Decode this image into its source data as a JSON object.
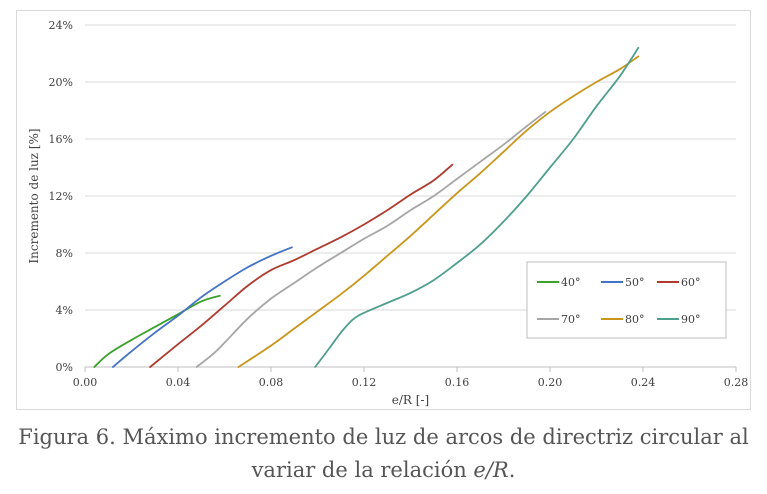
{
  "chart_data": {
    "type": "line",
    "xlabel": "e/R [-]",
    "ylabel": "Incremento de luz [%]",
    "xlim": [
      0,
      0.28
    ],
    "ylim": [
      0,
      24
    ],
    "x_ticks": [
      0.0,
      0.04,
      0.08,
      0.12,
      0.16,
      0.2,
      0.24,
      0.28
    ],
    "x_tick_labels": [
      "0.00",
      "0.04",
      "0.08",
      "0.12",
      "0.16",
      "0.20",
      "0.24",
      "0.28"
    ],
    "y_ticks": [
      0,
      4,
      8,
      12,
      16,
      20,
      24
    ],
    "y_tick_labels": [
      "0%",
      "4%",
      "8%",
      "12%",
      "16%",
      "20%",
      "24%"
    ],
    "grid": "horizontal",
    "legend_position": "right-bottom",
    "series": [
      {
        "name": "40°",
        "color": "#3aa12a",
        "points": [
          [
            0.004,
            0
          ],
          [
            0.01,
            0.9
          ],
          [
            0.02,
            1.9
          ],
          [
            0.03,
            2.8
          ],
          [
            0.04,
            3.7
          ],
          [
            0.05,
            4.6
          ],
          [
            0.058,
            5.0
          ]
        ]
      },
      {
        "name": "50°",
        "color": "#4472c4",
        "points": [
          [
            0.012,
            0
          ],
          [
            0.02,
            1.1
          ],
          [
            0.03,
            2.4
          ],
          [
            0.04,
            3.6
          ],
          [
            0.05,
            4.9
          ],
          [
            0.06,
            6.0
          ],
          [
            0.07,
            7.0
          ],
          [
            0.08,
            7.8
          ],
          [
            0.089,
            8.4
          ]
        ]
      },
      {
        "name": "60°",
        "color": "#b03a2e",
        "points": [
          [
            0.028,
            0
          ],
          [
            0.04,
            1.6
          ],
          [
            0.05,
            2.9
          ],
          [
            0.06,
            4.3
          ],
          [
            0.07,
            5.7
          ],
          [
            0.08,
            6.8
          ],
          [
            0.09,
            7.5
          ],
          [
            0.1,
            8.3
          ],
          [
            0.11,
            9.1
          ],
          [
            0.12,
            10.0
          ],
          [
            0.13,
            11.0
          ],
          [
            0.14,
            12.1
          ],
          [
            0.15,
            13.1
          ],
          [
            0.158,
            14.2
          ]
        ]
      },
      {
        "name": "70°",
        "color": "#a6a6a6",
        "points": [
          [
            0.048,
            0
          ],
          [
            0.055,
            0.9
          ],
          [
            0.06,
            1.7
          ],
          [
            0.07,
            3.4
          ],
          [
            0.08,
            4.8
          ],
          [
            0.09,
            5.9
          ],
          [
            0.1,
            7.0
          ],
          [
            0.11,
            8.0
          ],
          [
            0.12,
            9.0
          ],
          [
            0.13,
            9.9
          ],
          [
            0.14,
            11.0
          ],
          [
            0.15,
            12.0
          ],
          [
            0.16,
            13.2
          ],
          [
            0.17,
            14.4
          ],
          [
            0.18,
            15.6
          ],
          [
            0.19,
            16.9
          ],
          [
            0.198,
            17.9
          ]
        ]
      },
      {
        "name": "80°",
        "color": "#c9961c",
        "points": [
          [
            0.066,
            0
          ],
          [
            0.08,
            1.5
          ],
          [
            0.09,
            2.7
          ],
          [
            0.1,
            3.9
          ],
          [
            0.11,
            5.1
          ],
          [
            0.12,
            6.4
          ],
          [
            0.13,
            7.8
          ],
          [
            0.14,
            9.2
          ],
          [
            0.15,
            10.7
          ],
          [
            0.16,
            12.2
          ],
          [
            0.17,
            13.6
          ],
          [
            0.18,
            15.1
          ],
          [
            0.19,
            16.6
          ],
          [
            0.2,
            17.9
          ],
          [
            0.21,
            19.0
          ],
          [
            0.22,
            20.0
          ],
          [
            0.23,
            20.9
          ],
          [
            0.238,
            21.8
          ]
        ]
      },
      {
        "name": "90°",
        "color": "#4e9f8e",
        "points": [
          [
            0.099,
            0
          ],
          [
            0.105,
            1.3
          ],
          [
            0.11,
            2.4
          ],
          [
            0.115,
            3.3
          ],
          [
            0.12,
            3.8
          ],
          [
            0.13,
            4.5
          ],
          [
            0.14,
            5.2
          ],
          [
            0.15,
            6.1
          ],
          [
            0.16,
            7.3
          ],
          [
            0.17,
            8.6
          ],
          [
            0.18,
            10.2
          ],
          [
            0.19,
            12.0
          ],
          [
            0.2,
            14.0
          ],
          [
            0.21,
            16.0
          ],
          [
            0.22,
            18.3
          ],
          [
            0.23,
            20.4
          ],
          [
            0.238,
            22.4
          ]
        ]
      }
    ]
  },
  "caption": {
    "line1": "Figura 6. Máximo incremento de luz de arcos de directriz circular al",
    "line2_prefix": "variar de la relación ",
    "line2_var": "e/R",
    "line2_suffix": "."
  }
}
